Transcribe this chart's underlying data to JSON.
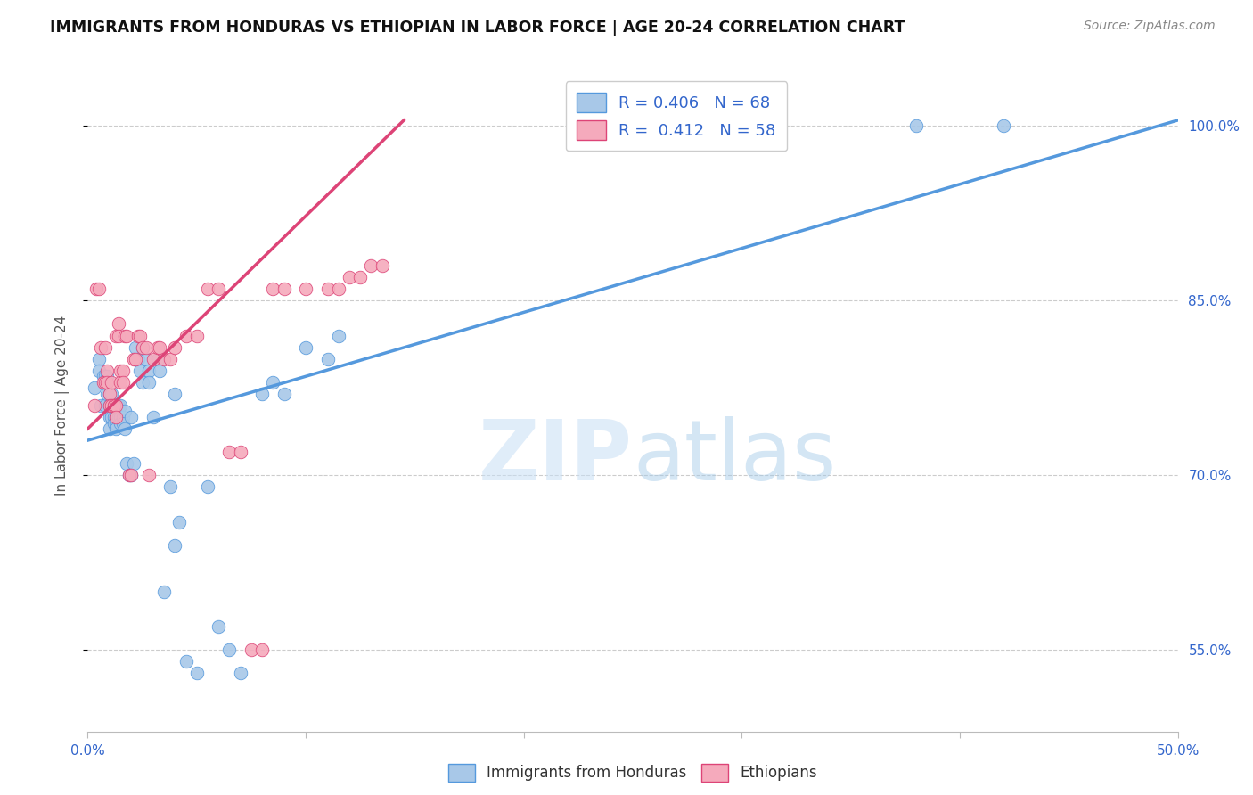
{
  "title": "IMMIGRANTS FROM HONDURAS VS ETHIOPIAN IN LABOR FORCE | AGE 20-24 CORRELATION CHART",
  "source": "Source: ZipAtlas.com",
  "ylabel": "In Labor Force | Age 20-24",
  "xlim": [
    0.0,
    0.5
  ],
  "ylim": [
    0.48,
    1.04
  ],
  "ytick_labels": [
    "100.0%",
    "85.0%",
    "70.0%",
    "55.0%"
  ],
  "ytick_vals": [
    1.0,
    0.85,
    0.7,
    0.55
  ],
  "watermark_zip": "ZIP",
  "watermark_atlas": "atlas",
  "honduras_color": "#a8c8e8",
  "ethiopian_color": "#f5aabc",
  "line_honduras_color": "#5599dd",
  "line_ethiopian_color": "#dd4477",
  "background_color": "#ffffff",
  "grid_color": "#cccccc",
  "legend_entries": [
    {
      "label": "R = 0.406   N = 68",
      "color": "#a8c8e8",
      "lc": "#5599dd"
    },
    {
      "label": "R =  0.412   N = 58",
      "color": "#f5aabc",
      "lc": "#dd4477"
    }
  ],
  "bottom_legend": [
    "Immigrants from Honduras",
    "Ethiopians"
  ],
  "honduras_x": [
    0.003,
    0.005,
    0.005,
    0.006,
    0.007,
    0.008,
    0.008,
    0.009,
    0.009,
    0.01,
    0.01,
    0.01,
    0.01,
    0.011,
    0.011,
    0.011,
    0.012,
    0.012,
    0.012,
    0.013,
    0.013,
    0.013,
    0.013,
    0.014,
    0.014,
    0.014,
    0.015,
    0.015,
    0.015,
    0.016,
    0.016,
    0.017,
    0.017,
    0.018,
    0.019,
    0.02,
    0.02,
    0.021,
    0.022,
    0.023,
    0.024,
    0.025,
    0.025,
    0.027,
    0.028,
    0.028,
    0.03,
    0.032,
    0.033,
    0.035,
    0.038,
    0.04,
    0.04,
    0.042,
    0.045,
    0.05,
    0.055,
    0.06,
    0.065,
    0.07,
    0.08,
    0.085,
    0.09,
    0.1,
    0.11,
    0.115,
    0.38,
    0.42
  ],
  "honduras_y": [
    0.775,
    0.8,
    0.79,
    0.76,
    0.785,
    0.785,
    0.76,
    0.785,
    0.77,
    0.77,
    0.76,
    0.75,
    0.74,
    0.77,
    0.76,
    0.75,
    0.76,
    0.75,
    0.745,
    0.76,
    0.75,
    0.745,
    0.74,
    0.76,
    0.755,
    0.75,
    0.76,
    0.75,
    0.745,
    0.75,
    0.745,
    0.755,
    0.74,
    0.71,
    0.7,
    0.75,
    0.7,
    0.71,
    0.81,
    0.8,
    0.79,
    0.78,
    0.81,
    0.8,
    0.79,
    0.78,
    0.75,
    0.8,
    0.79,
    0.6,
    0.69,
    0.77,
    0.64,
    0.66,
    0.54,
    0.53,
    0.69,
    0.57,
    0.55,
    0.53,
    0.77,
    0.78,
    0.77,
    0.81,
    0.8,
    0.82,
    1.0,
    1.0
  ],
  "ethiopian_x": [
    0.003,
    0.004,
    0.005,
    0.006,
    0.007,
    0.008,
    0.008,
    0.009,
    0.009,
    0.01,
    0.01,
    0.011,
    0.011,
    0.012,
    0.012,
    0.013,
    0.013,
    0.013,
    0.014,
    0.014,
    0.015,
    0.015,
    0.016,
    0.016,
    0.017,
    0.018,
    0.019,
    0.02,
    0.021,
    0.022,
    0.023,
    0.024,
    0.025,
    0.027,
    0.028,
    0.03,
    0.032,
    0.033,
    0.035,
    0.038,
    0.04,
    0.045,
    0.05,
    0.055,
    0.06,
    0.065,
    0.07,
    0.075,
    0.08,
    0.085,
    0.09,
    0.1,
    0.11,
    0.115,
    0.12,
    0.125,
    0.13,
    0.135
  ],
  "ethiopian_y": [
    0.76,
    0.86,
    0.86,
    0.81,
    0.78,
    0.78,
    0.81,
    0.79,
    0.78,
    0.77,
    0.76,
    0.78,
    0.76,
    0.76,
    0.76,
    0.76,
    0.75,
    0.82,
    0.83,
    0.82,
    0.79,
    0.78,
    0.79,
    0.78,
    0.82,
    0.82,
    0.7,
    0.7,
    0.8,
    0.8,
    0.82,
    0.82,
    0.81,
    0.81,
    0.7,
    0.8,
    0.81,
    0.81,
    0.8,
    0.8,
    0.81,
    0.82,
    0.82,
    0.86,
    0.86,
    0.72,
    0.72,
    0.55,
    0.55,
    0.86,
    0.86,
    0.86,
    0.86,
    0.86,
    0.87,
    0.87,
    0.88,
    0.88
  ],
  "h_line_x0": 0.0,
  "h_line_x1": 0.5,
  "h_line_y0": 0.73,
  "h_line_y1": 1.005,
  "e_line_x0": 0.0,
  "e_line_x1": 0.145,
  "e_line_y0": 0.74,
  "e_line_y1": 1.005
}
